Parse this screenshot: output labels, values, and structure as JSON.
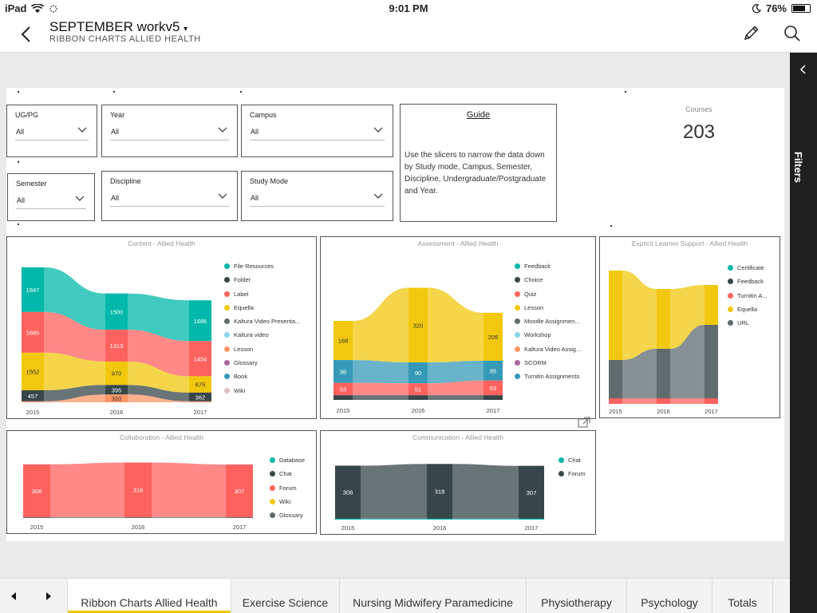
{
  "status_bar": {
    "device": "iPad",
    "time": "9:01 PM",
    "battery": "76%",
    "battery_level": 0.76
  },
  "header": {
    "title": "SEPTEMBER workv5",
    "subtitle": "RIBBON CHARTS ALLIED HEALTH"
  },
  "filters_label": "Filters",
  "slicers": [
    {
      "label": "UG/PG",
      "value": "All"
    },
    {
      "label": "Year",
      "value": "All"
    },
    {
      "label": "Campus",
      "value": "All"
    },
    {
      "label": "Semester",
      "value": "All"
    },
    {
      "label": "Discipline",
      "value": "All"
    },
    {
      "label": "Study Mode",
      "value": "All"
    }
  ],
  "guide": {
    "title": "Guide",
    "text": "Use the slicers to narrow the data down by Study mode, Campus, Semester, Discipline, Undergraduate/Postgraduate and Year."
  },
  "card": {
    "label": "Courses",
    "value": "203"
  },
  "chart_data": [
    {
      "type": "area",
      "title": "Content - Allied Health",
      "categories": [
        "2015",
        "2016",
        "2017"
      ],
      "series": [
        {
          "name": "File Resources",
          "color": "#01b8aa",
          "values": [
            1847,
            1500,
            1686
          ]
        },
        {
          "name": "Folder",
          "color": "#374649",
          "values": [
            457,
            395,
            362
          ]
        },
        {
          "name": "Label",
          "color": "#fd625e",
          "values": [
            1685,
            1313,
            1454
          ]
        },
        {
          "name": "Equella",
          "color": "#f2c80f",
          "values": [
            1552,
            970,
            675
          ]
        },
        {
          "name": "Kaltura Video Presenta...",
          "color": "#5f6b6d",
          "values": [
            null,
            null,
            null
          ]
        },
        {
          "name": "Kaltura video",
          "color": "#8ad4eb",
          "values": [
            null,
            null,
            null
          ]
        },
        {
          "name": "Lesson",
          "color": "#fe9666",
          "values": [
            null,
            320,
            null
          ]
        },
        {
          "name": "Glossary",
          "color": "#a66999",
          "values": [
            null,
            null,
            null
          ]
        },
        {
          "name": "Book",
          "color": "#3599b8",
          "values": [
            null,
            null,
            null
          ]
        },
        {
          "name": "Wiki",
          "color": "#dfbfbf",
          "values": [
            null,
            null,
            null
          ]
        }
      ]
    },
    {
      "type": "area",
      "title": "Assessment - Allied Health",
      "categories": [
        "2015",
        "2016",
        "2017"
      ],
      "series": [
        {
          "name": "Feedback",
          "color": "#01b8aa",
          "values": [
            null,
            null,
            null
          ]
        },
        {
          "name": "Choice",
          "color": "#374649",
          "values": [
            null,
            null,
            null
          ]
        },
        {
          "name": "Quiz",
          "color": "#fd625e",
          "values": [
            53,
            51,
            63
          ]
        },
        {
          "name": "Lesson",
          "color": "#f2c80f",
          "values": [
            168,
            320,
            206
          ]
        },
        {
          "name": "Moodle Assignmen...",
          "color": "#5f6b6d",
          "values": [
            null,
            null,
            null
          ]
        },
        {
          "name": "Workshop",
          "color": "#8ad4eb",
          "values": [
            null,
            null,
            null
          ]
        },
        {
          "name": "Kaltura Video Assig...",
          "color": "#fe9666",
          "values": [
            null,
            null,
            null
          ]
        },
        {
          "name": "SCORM",
          "color": "#a66999",
          "values": [
            null,
            null,
            null
          ]
        },
        {
          "name": "Turnitin Assignments",
          "color": "#3599b8",
          "values": [
            98,
            90,
            85
          ]
        }
      ]
    },
    {
      "type": "area",
      "title": "Explicit Learner Support - Allied Health",
      "categories": [
        "2015",
        "2016",
        "2017"
      ],
      "series": [
        {
          "name": "Certificate",
          "color": "#01b8aa",
          "values": [
            null,
            null,
            null
          ]
        },
        {
          "name": "Feedback",
          "color": "#374649",
          "values": [
            null,
            null,
            null
          ]
        },
        {
          "name": "Turnitin A...",
          "color": "#fd625e",
          "values": [
            null,
            null,
            null
          ]
        },
        {
          "name": "Equella",
          "color": "#f2c80f",
          "values": [
            null,
            null,
            null
          ]
        },
        {
          "name": "URL",
          "color": "#5f6b6d",
          "values": [
            null,
            null,
            null
          ]
        }
      ]
    },
    {
      "type": "area",
      "title": "Collaboration - Allied Health",
      "categories": [
        "2015",
        "2016",
        "2017"
      ],
      "series": [
        {
          "name": "Database",
          "color": "#01b8aa",
          "values": [
            null,
            null,
            null
          ]
        },
        {
          "name": "Chat",
          "color": "#374649",
          "values": [
            null,
            null,
            null
          ]
        },
        {
          "name": "Forum",
          "color": "#fd625e",
          "values": [
            308,
            318,
            307
          ]
        },
        {
          "name": "Wiki",
          "color": "#f2c80f",
          "values": [
            null,
            null,
            null
          ]
        },
        {
          "name": "Glossary",
          "color": "#5f6b6d",
          "values": [
            null,
            null,
            null
          ]
        }
      ]
    },
    {
      "type": "area",
      "title": "Communication - Allied Health",
      "categories": [
        "2015",
        "2016",
        "2017"
      ],
      "series": [
        {
          "name": "Chat",
          "color": "#01b8aa",
          "values": [
            null,
            null,
            null
          ]
        },
        {
          "name": "Forum",
          "color": "#374649",
          "values": [
            308,
            318,
            307
          ]
        }
      ]
    }
  ],
  "tabs": [
    {
      "label": "Ribbon Charts Allied Health",
      "active": true
    },
    {
      "label": "Exercise Science",
      "active": false
    },
    {
      "label": "Nursing Midwifery Paramedicine",
      "active": false
    },
    {
      "label": "Physiotherapy",
      "active": false
    },
    {
      "label": "Psychology",
      "active": false
    },
    {
      "label": "Totals",
      "active": false
    }
  ]
}
